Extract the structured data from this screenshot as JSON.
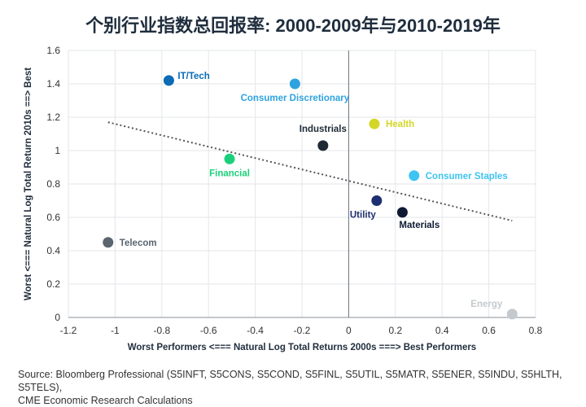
{
  "title": "个别行业指数总回报率: 2000-2009年与2010-2019年",
  "source": {
    "line1": "Source: Bloomberg Professional (S5INFT, S5CONS, S5COND, S5FINL, S5UTIL, S5MATR, S5ENER, S5INDU, S5HLTH, S5TELS),",
    "line2": "CME Economic Research Calculations"
  },
  "chart_data": {
    "type": "scatter",
    "xlabel": "Worst Performers <=== Natural Log Total Returns 2000s ===> Best Performers",
    "ylabel": "Worst <=== Natural Log Total Return 2010s ==> Best",
    "xlim": [
      -1.2,
      0.8
    ],
    "ylim": [
      0,
      1.6
    ],
    "x_ticks": [
      "-1.2",
      "-1",
      "-0.8",
      "-0.6",
      "-0.4",
      "-0.2",
      "0",
      "0.2",
      "0.4",
      "0.6",
      "0.8"
    ],
    "y_ticks": [
      "0",
      "0.2",
      "0.4",
      "0.6",
      "0.8",
      "1",
      "1.2",
      "1.4",
      "1.6"
    ],
    "grid": true,
    "points": [
      {
        "label": "IT/Tech",
        "x": -0.77,
        "y": 1.42,
        "color": "#0b6bb5",
        "label_pos": "upper-right"
      },
      {
        "label": "Consumer Discretionary",
        "x": -0.23,
        "y": 1.4,
        "color": "#2ea3e0",
        "label_pos": "below"
      },
      {
        "label": "Health",
        "x": 0.11,
        "y": 1.16,
        "color": "#d4d626",
        "label_pos": "right"
      },
      {
        "label": "Industrials",
        "x": -0.11,
        "y": 1.03,
        "color": "#1f2a36",
        "label_pos": "above"
      },
      {
        "label": "Financial",
        "x": -0.51,
        "y": 0.95,
        "color": "#1bd07a",
        "label_pos": "below"
      },
      {
        "label": "Consumer Staples",
        "x": 0.28,
        "y": 0.85,
        "color": "#3ec4f2",
        "label_pos": "right"
      },
      {
        "label": "Utility",
        "x": 0.12,
        "y": 0.7,
        "color": "#1d2f6f",
        "label_pos": "below-left"
      },
      {
        "label": "Materials",
        "x": 0.23,
        "y": 0.63,
        "color": "#0e1a33",
        "label_pos": "below-right"
      },
      {
        "label": "Telecom",
        "x": -1.03,
        "y": 0.45,
        "color": "#5a6570",
        "label_pos": "right"
      },
      {
        "label": "Energy",
        "x": 0.7,
        "y": 0.02,
        "color": "#c4c9cd",
        "label_pos": "upper-left"
      }
    ],
    "trendline": {
      "style": "dotted",
      "color": "#555555",
      "x": [
        -1.03,
        0.7
      ],
      "y": [
        1.17,
        0.58
      ]
    },
    "zero_line_x": 0
  }
}
